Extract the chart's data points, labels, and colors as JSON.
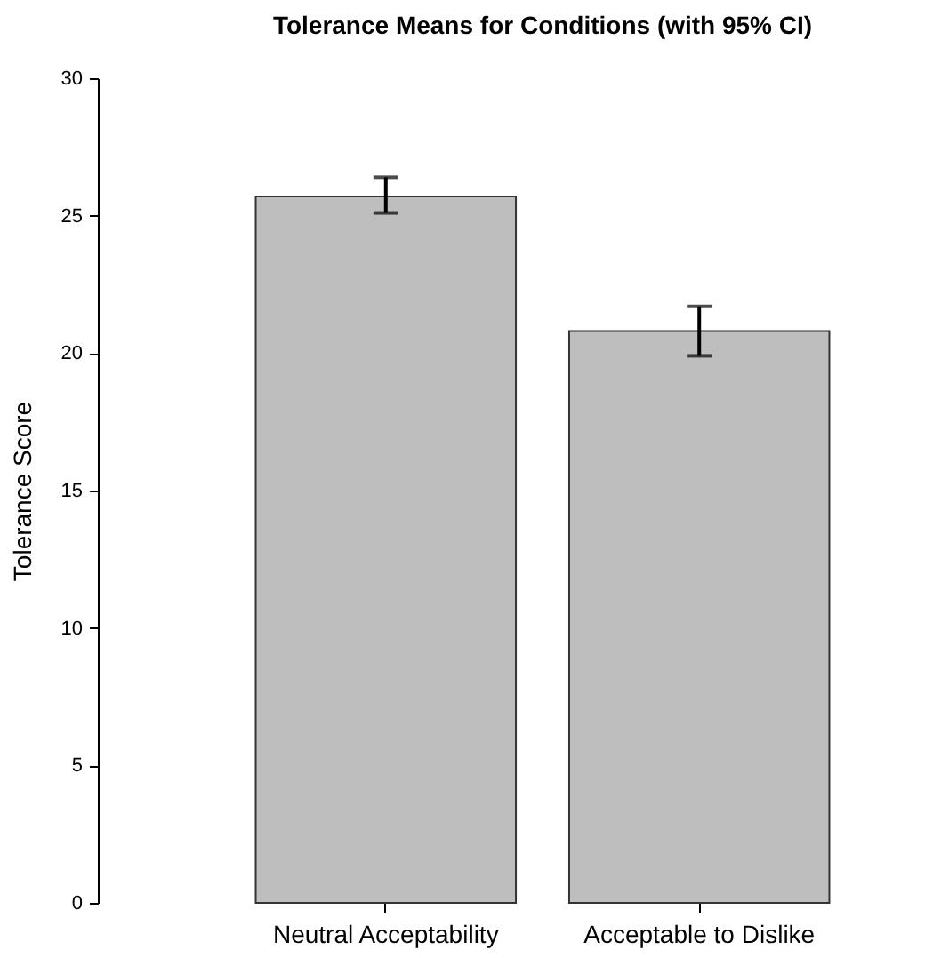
{
  "chart_data": {
    "type": "bar",
    "title": "Tolerance Means for Conditions (with 95% CI)",
    "ylabel": "Tolerance Score",
    "categories": [
      "Neutral Acceptability",
      "Acceptable to Dislike"
    ],
    "values": [
      25.7,
      20.8
    ],
    "errors": [
      [
        25.1,
        26.4
      ],
      [
        19.9,
        21.7
      ]
    ],
    "color": "#bebebe",
    "ylim": [
      0,
      30
    ],
    "yticks": [
      0,
      5,
      10,
      15,
      20,
      25,
      30
    ],
    "grid": false
  }
}
